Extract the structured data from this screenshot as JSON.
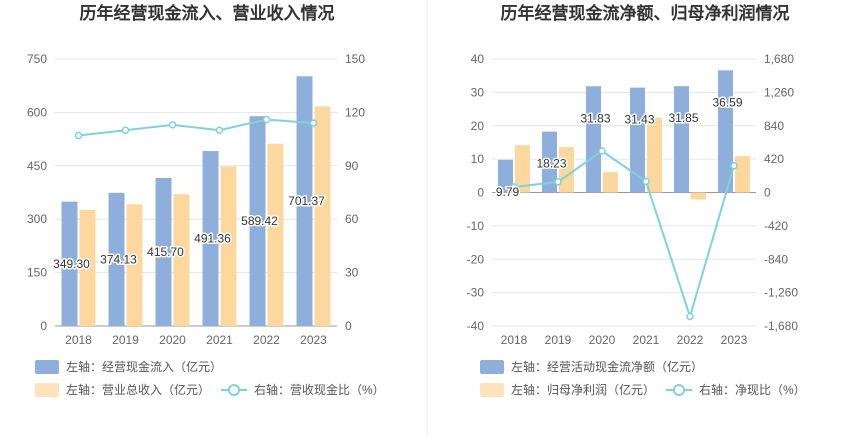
{
  "chart_data": [
    {
      "type": "bar+line",
      "title": "历年经营现金流入、营业收入情况",
      "categories": [
        "2018",
        "2019",
        "2020",
        "2021",
        "2022",
        "2023"
      ],
      "left_axis": {
        "ylim": [
          0,
          750
        ],
        "ticks": [
          "0",
          "150",
          "300",
          "450",
          "600",
          "750"
        ]
      },
      "right_axis": {
        "ylim": [
          0,
          150
        ],
        "ticks": [
          "0",
          "30",
          "60",
          "90",
          "120",
          "150"
        ]
      },
      "series": [
        {
          "name": "左轴：经营现金流入（亿元）",
          "type": "bar",
          "axis": "left",
          "color": "#8eaedc",
          "values": [
            349.3,
            374.13,
            415.7,
            491.36,
            589.42,
            701.37
          ],
          "labels": [
            "349.30",
            "374.13",
            "415.70",
            "491.36",
            "589.42",
            "701.37"
          ]
        },
        {
          "name": "左轴：营业总收入（亿元）",
          "type": "bar",
          "axis": "left",
          "color": "#fdd89e",
          "values": [
            326,
            342,
            370,
            448,
            512,
            617
          ]
        },
        {
          "name": "右轴：营收现金比（%）",
          "type": "line",
          "axis": "right",
          "color": "#7fd3d8",
          "values": [
            107,
            110,
            113,
            110,
            116,
            114
          ]
        }
      ],
      "grid": true,
      "legend_position": "bottom"
    },
    {
      "type": "bar+line",
      "title": "历年经营现金流净额、归母净利润情况",
      "categories": [
        "2018",
        "2019",
        "2020",
        "2021",
        "2022",
        "2023"
      ],
      "left_axis": {
        "ylim": [
          -40,
          40
        ],
        "ticks": [
          "-40",
          "-30",
          "-20",
          "-10",
          "0",
          "10",
          "20",
          "30",
          "40"
        ]
      },
      "right_axis": {
        "ylim": [
          -1680,
          1680
        ],
        "ticks": [
          "-1,680",
          "-1,260",
          "-840",
          "-420",
          "0",
          "420",
          "840",
          "1,260",
          "1,680"
        ]
      },
      "series": [
        {
          "name": "左轴：经营活动现金流净额（亿元）",
          "type": "bar",
          "axis": "left",
          "color": "#8eaedc",
          "values": [
            9.79,
            18.23,
            31.83,
            31.43,
            31.85,
            36.59
          ],
          "labels": [
            "9.79",
            "18.23",
            "31.83",
            "31.43",
            "31.85",
            "36.59"
          ]
        },
        {
          "name": "左轴：归母净利润（亿元）",
          "type": "bar",
          "axis": "left",
          "color": "#fdd89e",
          "values": [
            14.2,
            13.6,
            6.1,
            22.4,
            -2.1,
            10.9
          ]
        },
        {
          "name": "右轴：净现比（%）",
          "type": "line",
          "axis": "right",
          "color": "#7fd3d8",
          "values": [
            69,
            134,
            522,
            140,
            -1560,
            336
          ]
        }
      ],
      "grid": true,
      "legend_position": "bottom"
    }
  ]
}
